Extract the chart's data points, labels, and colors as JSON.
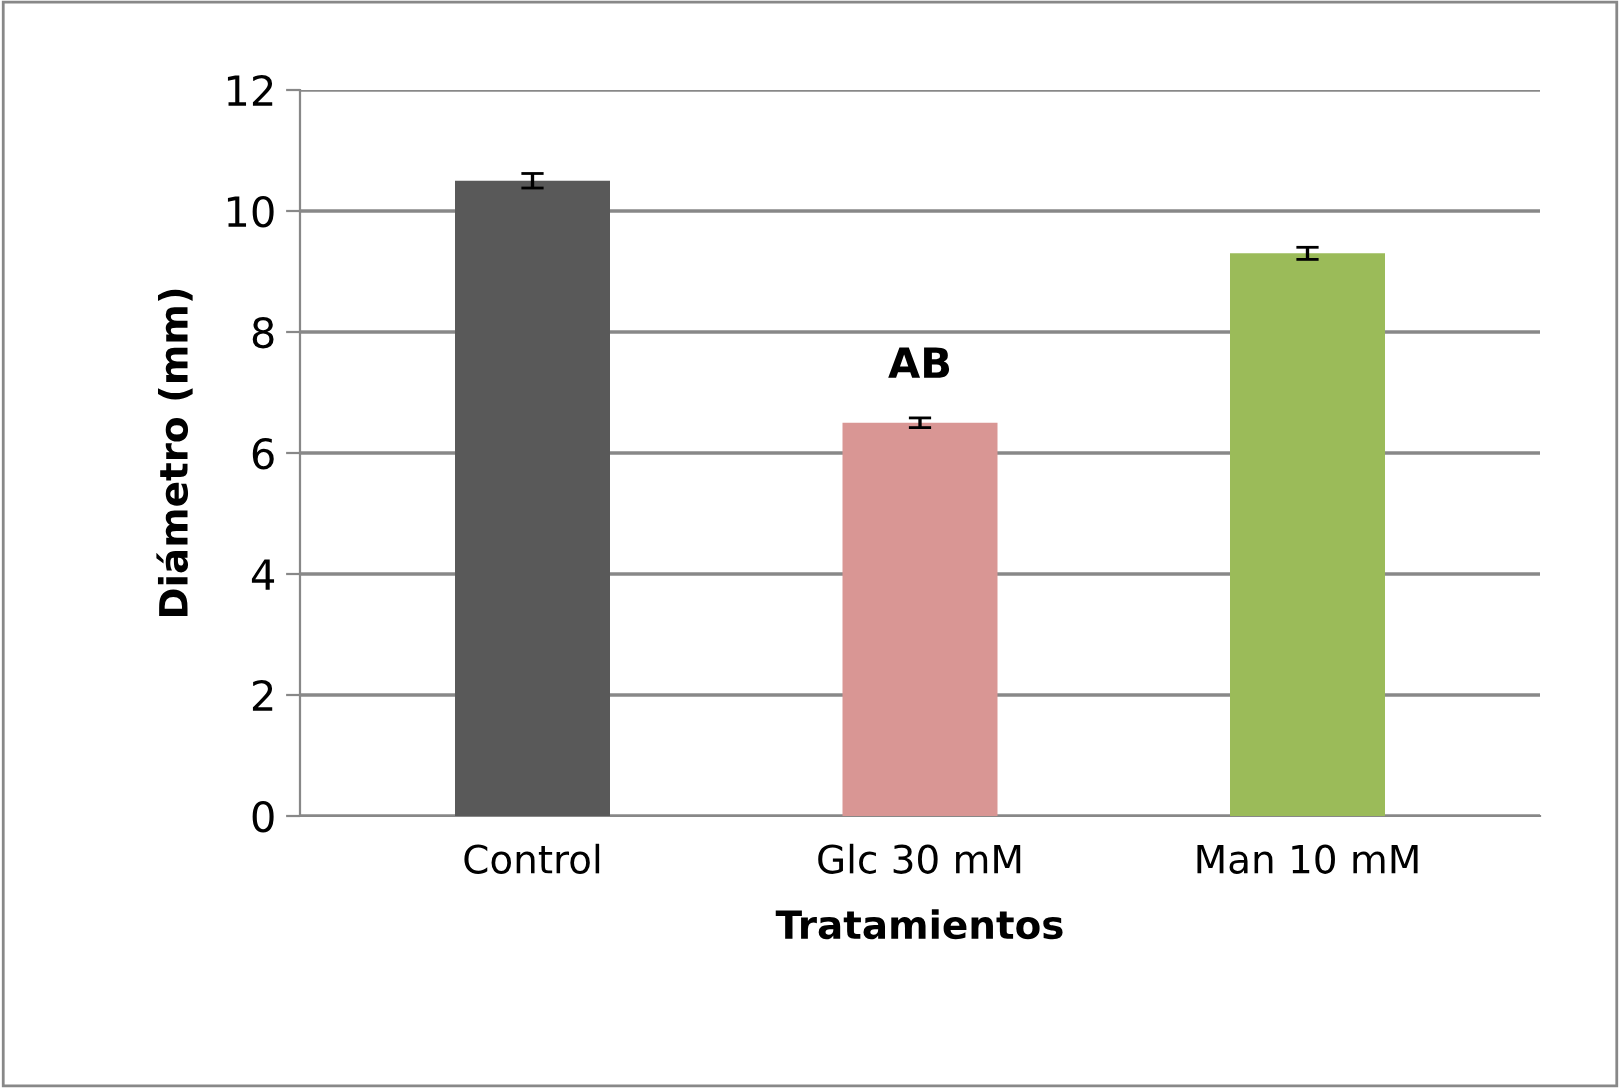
{
  "chart_data": {
    "type": "bar",
    "xlabel": "Tratamientos",
    "ylabel": "Diámetro (mm)",
    "categories": [
      "Control",
      "Glc 30 mM",
      "Man 10 mM"
    ],
    "values": [
      10.5,
      6.5,
      9.3
    ],
    "colors": [
      "#595959",
      "#d99694",
      "#9bbb59"
    ],
    "errors": [
      0.12,
      0.08,
      0.1
    ],
    "ylim": [
      0,
      12
    ],
    "yticks": [
      0,
      2,
      4,
      6,
      8,
      10,
      12
    ],
    "grid": "y",
    "annotations": [
      "AB"
    ]
  }
}
